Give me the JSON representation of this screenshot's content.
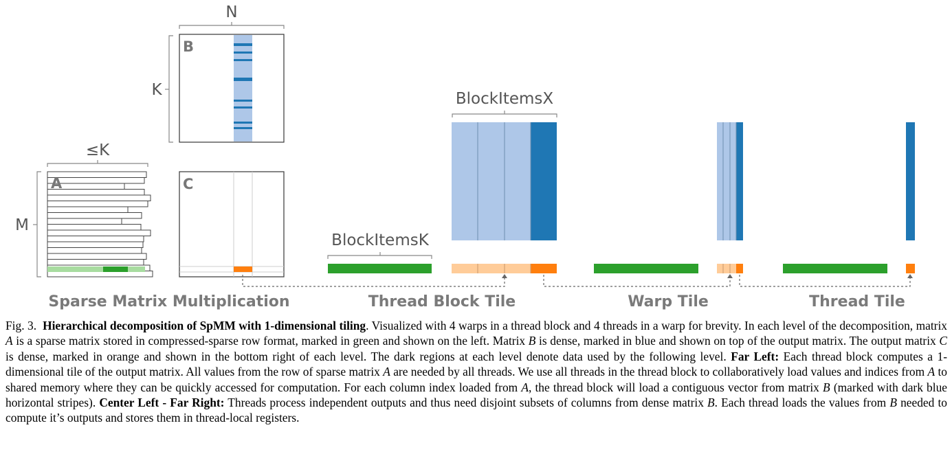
{
  "figure": {
    "dims": {
      "n": "N",
      "k": "K",
      "le_k": "≤K",
      "m": "M"
    },
    "matrix_labels": {
      "a": "A",
      "b": "B",
      "c": "C"
    },
    "param_labels": {
      "block_items_x": "BlockItemsX",
      "block_items_k": "BlockItemsK"
    },
    "sections": {
      "spmm": "Sparse Matrix Multiplication",
      "thread_block": "Thread Block Tile",
      "warp": "Warp Tile",
      "thread": "Thread Tile"
    },
    "colors": {
      "sparse_green": "#2ca02c",
      "light_green": "#a8dca0",
      "dense_blue": "#1f77b4",
      "light_blue": "#aec7e8",
      "output_orange": "#ff7f0e",
      "light_orange": "#ffcc99"
    }
  },
  "caption": {
    "fig_label": "Fig. 3.",
    "title": "Hierarchical decomposition of SpMM with 1-dimensional tiling",
    "s1": ". Visualized with 4 warps in a thread block and 4 threads in a warp for brevity. In each level of the decomposition, matrix ",
    "var_a1": "A",
    "s2": " is a sparse matrix stored in compressed-sparse row format, marked in green and shown on the left. Matrix ",
    "var_b1": "B",
    "s3": " is dense, marked in blue and shown on top of the output matrix. The output matrix ",
    "var_c1": "C",
    "s4": " is dense, marked in orange and shown in the bottom right of each level. The dark regions at each level denote data used by the following level. ",
    "far_left": "Far Left:",
    "s5": " Each thread block computes a 1-dimensional tile of the output matrix. All values from the row of sparse matrix ",
    "var_a2": "A",
    "s6": " are needed by all threads. We use all threads in the thread block to collaboratively load values and indices from ",
    "var_a3": "A",
    "s7": " to shared memory where they can be quickly accessed for computation. For each column index loaded from ",
    "var_a4": "A",
    "s8": ", the thread block will load a contiguous vector from matrix ",
    "var_b2": "B",
    "s9": " (marked with dark blue horizontal stripes). ",
    "center": "Center Left - Far Right:",
    "s10": " Threads process independent outputs and thus need disjoint subsets of columns from dense matrix ",
    "var_b3": "B",
    "s11": ". Each thread loads the values from ",
    "var_b4": "B",
    "s12": " needed to compute it’s outputs and stores them in thread-local registers."
  }
}
